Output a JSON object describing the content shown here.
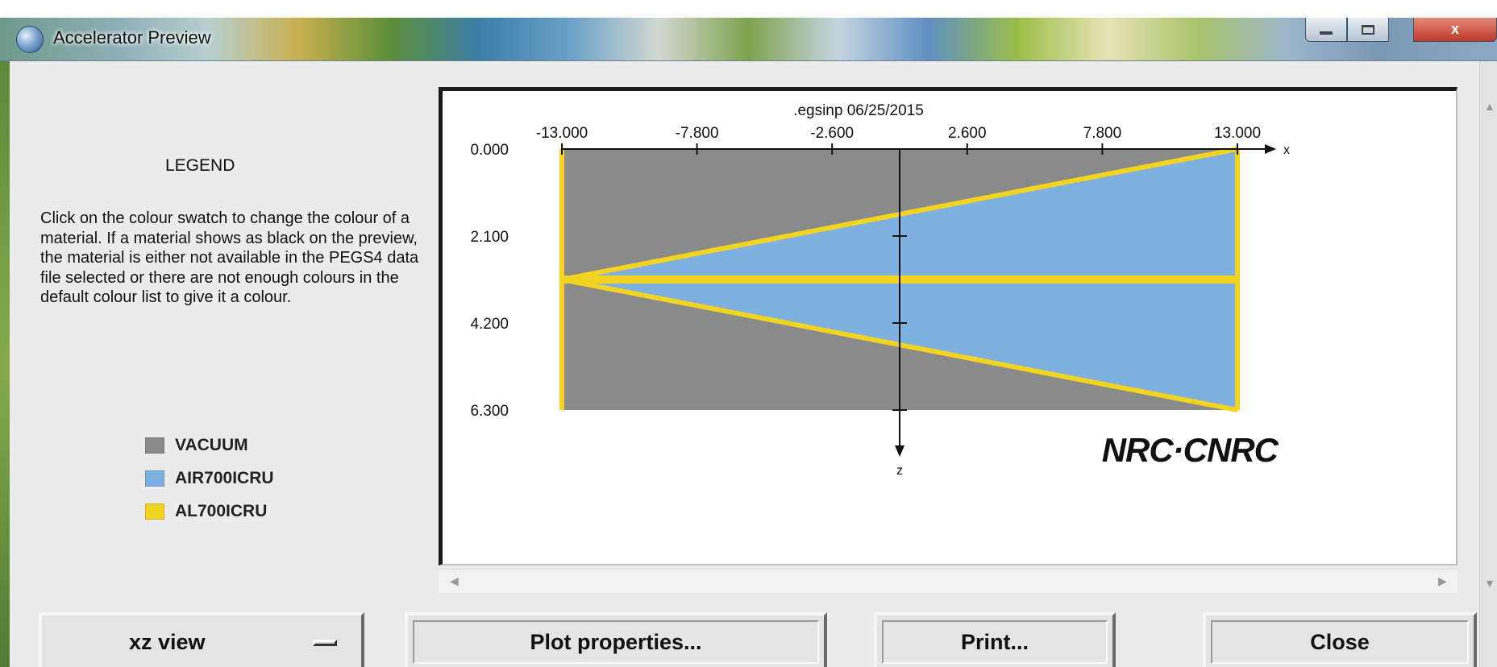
{
  "window": {
    "title": "Accelerator Preview",
    "icons": {
      "app": "globe-icon",
      "minimize": "minimize-icon",
      "maximize": "maximize-icon",
      "close": "close-icon"
    },
    "close_glyph": "x"
  },
  "legend": {
    "title": "LEGEND",
    "description": "Click on the colour swatch to change the colour of a material.  If a material shows as black on the preview,  the material is either not available in the PEGS4 data file selected or there are not enough colours in the default colour list to give it a colour.",
    "materials": [
      {
        "name": "VACUUM",
        "color": "#8a8a8a"
      },
      {
        "name": "AIR700ICRU",
        "color": "#7eb0e0"
      },
      {
        "name": "AL700ICRU",
        "color": "#f3d421"
      }
    ]
  },
  "plot": {
    "header": ".egsinp   06/25/2015",
    "logo": "NRC·CNRC",
    "colors": {
      "vacuum": "#8a8a8a",
      "air": "#7eb0e0",
      "aluminum": "#f3d421"
    }
  },
  "chart_data": {
    "type": "diagram",
    "title": ".egsinp   06/25/2015",
    "x_axis": {
      "label": "x",
      "range": [
        -13.0,
        13.0
      ],
      "ticks": [
        -13.0,
        -7.8,
        -2.6,
        2.6,
        7.8,
        13.0
      ],
      "tick_labels": [
        "-13.000",
        "-7.800",
        "-2.600",
        "2.600",
        "7.800",
        "13.000"
      ]
    },
    "z_axis": {
      "label": "z",
      "range": [
        0.0,
        6.3
      ],
      "ticks": [
        0.0,
        2.1,
        4.2,
        6.3
      ],
      "tick_labels": [
        "0.000",
        "2.100",
        "4.200",
        "6.300"
      ]
    },
    "regions": [
      {
        "material": "VACUUM",
        "shape": "rectangle",
        "x": [
          -13.0,
          13.0
        ],
        "z": [
          0.0,
          6.3
        ]
      },
      {
        "material": "AIR700ICRU",
        "shape": "wedge-upper",
        "apex": [
          -13.0,
          3.15
        ],
        "far_edge": {
          "x": 13.0,
          "z": [
            0.0,
            3.15
          ]
        }
      },
      {
        "material": "AIR700ICRU",
        "shape": "wedge-lower",
        "apex": [
          -13.0,
          3.15
        ],
        "far_edge": {
          "x": 13.0,
          "z": [
            3.15,
            6.3
          ]
        }
      },
      {
        "material": "AL700ICRU",
        "shape": "boundary-lines",
        "segments": [
          [
            [
              -13.0,
              0.0
            ],
            [
              -13.0,
              6.3
            ]
          ],
          [
            [
              13.0,
              0.0
            ],
            [
              13.0,
              6.3
            ]
          ],
          [
            [
              -13.0,
              3.15
            ],
            [
              13.0,
              3.15
            ]
          ],
          [
            [
              -13.0,
              3.15
            ],
            [
              13.0,
              0.0
            ]
          ],
          [
            [
              -13.0,
              3.15
            ],
            [
              13.0,
              6.3
            ]
          ]
        ]
      }
    ]
  },
  "controls": {
    "view_select": "xz view",
    "plot_properties": "Plot properties...",
    "print": "Print...",
    "close": "Close"
  }
}
